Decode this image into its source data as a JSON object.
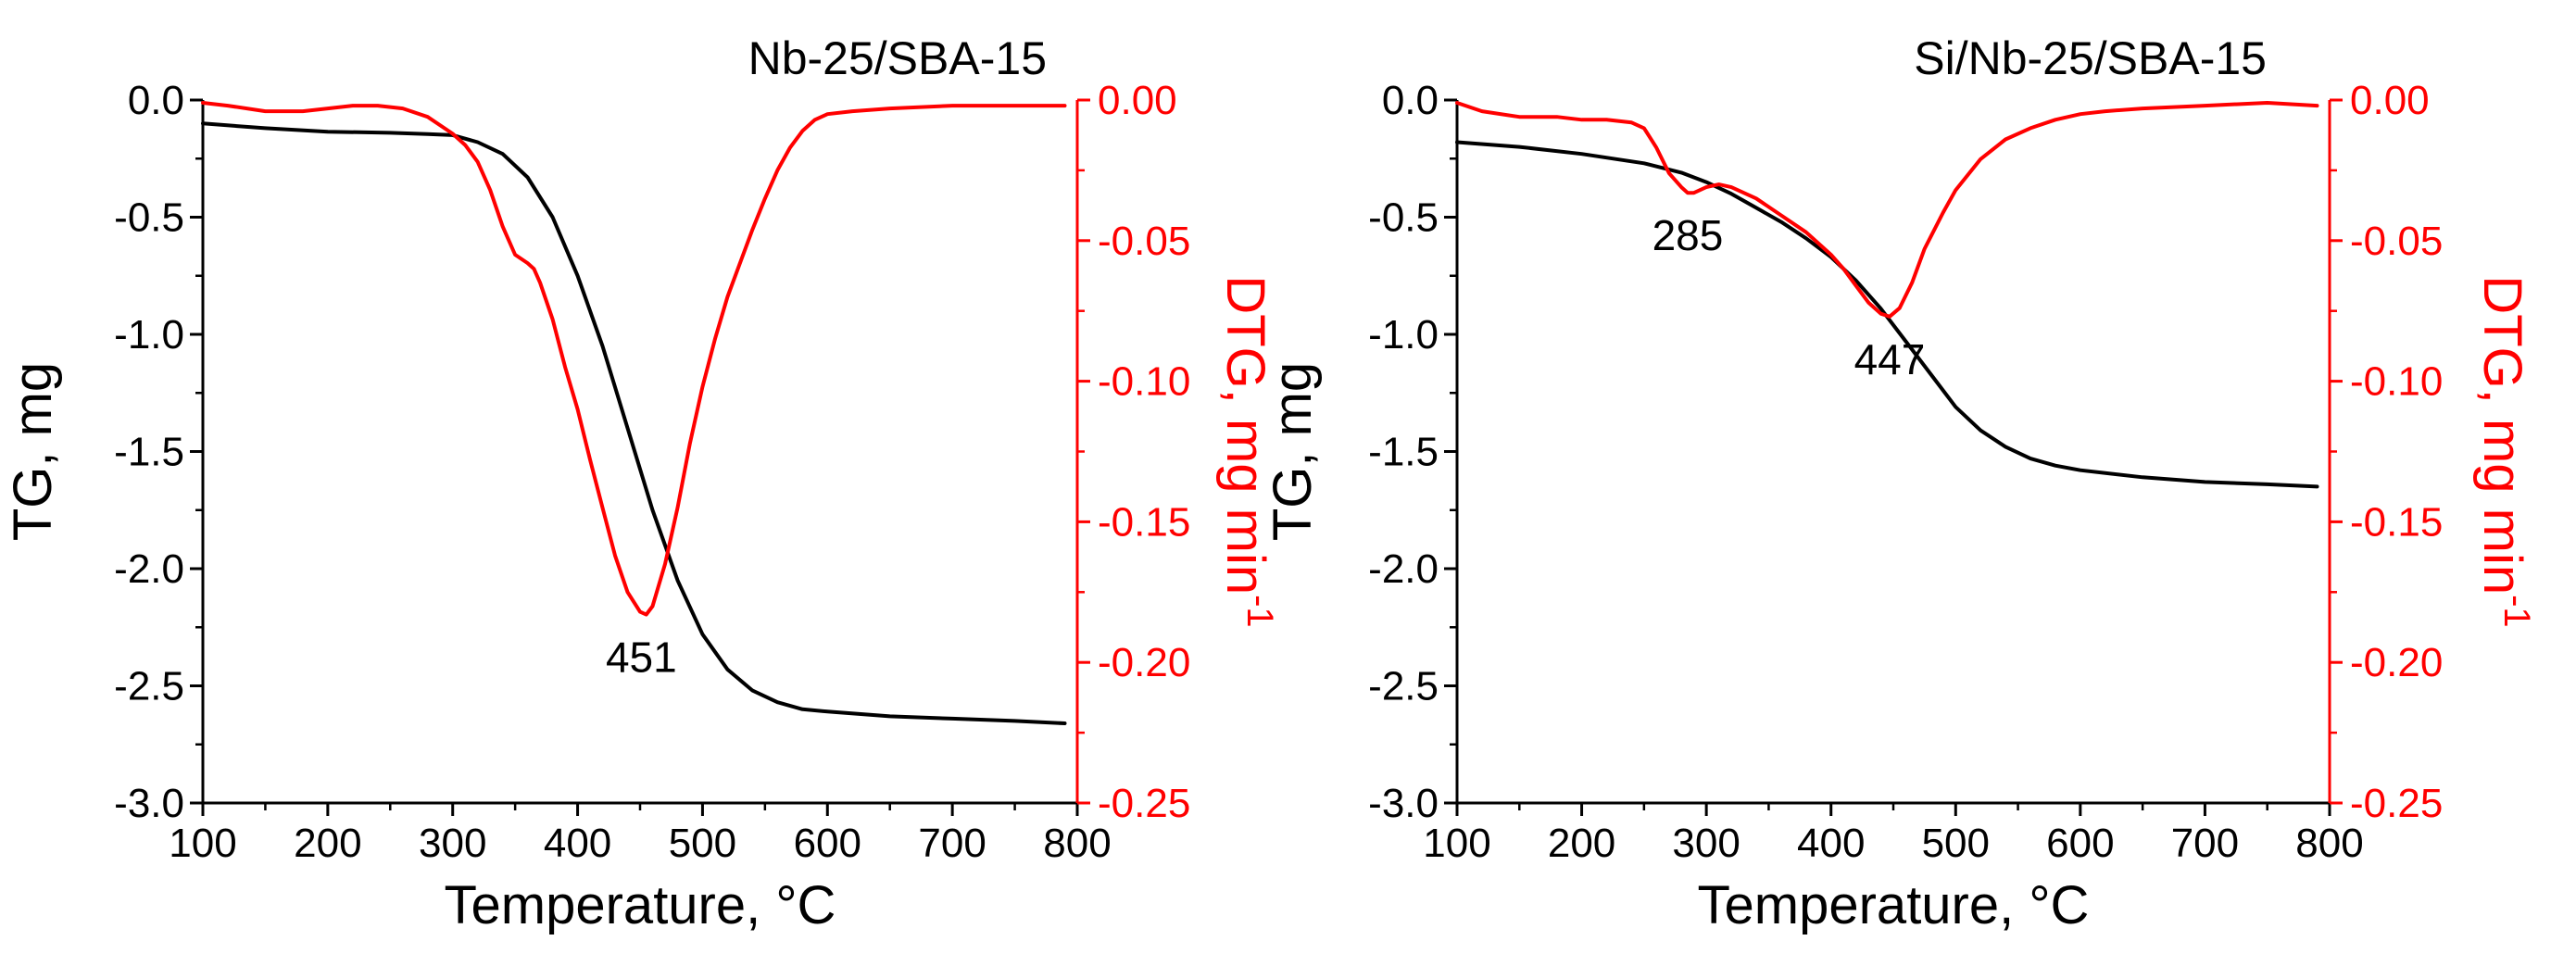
{
  "chart_data": [
    {
      "type": "line",
      "title": "Nb-25/SBA-15",
      "xlabel": "Temperature, °C",
      "ylabel_left": "TG, mg",
      "ylabel_right": "DTG, mg min",
      "ylabel_right_sup": "-1",
      "xlim": [
        100,
        800
      ],
      "ylim_left": [
        -3.0,
        0.0
      ],
      "ylim_right": [
        -0.25,
        0.0
      ],
      "x_ticks": [
        "100",
        "200",
        "300",
        "400",
        "500",
        "600",
        "700",
        "800"
      ],
      "y_ticks_left": [
        "0.0",
        "-0.5",
        "-1.0",
        "-1.5",
        "-2.0",
        "-2.5",
        "-3.0"
      ],
      "y_ticks_right": [
        "0.00",
        "-0.05",
        "-0.10",
        "-0.15",
        "-0.20",
        "-0.25"
      ],
      "colors": {
        "tg": "#000000",
        "dtg": "#ff0000"
      },
      "annotations": [
        {
          "text": "451",
          "x": 451,
          "y_right": -0.183
        }
      ],
      "series": [
        {
          "name": "TG",
          "axis": "left",
          "x": [
            100,
            150,
            200,
            250,
            280,
            300,
            320,
            340,
            360,
            380,
            400,
            420,
            440,
            460,
            480,
            500,
            520,
            540,
            560,
            580,
            600,
            650,
            700,
            750,
            790
          ],
          "y": [
            -0.1,
            -0.12,
            -0.135,
            -0.14,
            -0.145,
            -0.15,
            -0.18,
            -0.23,
            -0.33,
            -0.5,
            -0.75,
            -1.05,
            -1.4,
            -1.75,
            -2.05,
            -2.28,
            -2.43,
            -2.52,
            -2.57,
            -2.6,
            -2.61,
            -2.63,
            -2.64,
            -2.65,
            -2.66
          ]
        },
        {
          "name": "DTG",
          "axis": "right",
          "x": [
            100,
            120,
            150,
            180,
            200,
            220,
            240,
            260,
            280,
            300,
            310,
            320,
            330,
            340,
            350,
            360,
            365,
            370,
            380,
            390,
            400,
            410,
            420,
            430,
            440,
            450,
            455,
            460,
            470,
            480,
            490,
            500,
            510,
            520,
            530,
            540,
            550,
            560,
            570,
            580,
            590,
            600,
            620,
            650,
            700,
            750,
            790
          ],
          "y": [
            -0.001,
            -0.002,
            -0.004,
            -0.004,
            -0.003,
            -0.002,
            -0.002,
            -0.003,
            -0.006,
            -0.012,
            -0.016,
            -0.022,
            -0.032,
            -0.045,
            -0.055,
            -0.058,
            -0.06,
            -0.065,
            -0.078,
            -0.095,
            -0.11,
            -0.128,
            -0.145,
            -0.162,
            -0.175,
            -0.182,
            -0.183,
            -0.18,
            -0.165,
            -0.145,
            -0.122,
            -0.102,
            -0.085,
            -0.07,
            -0.058,
            -0.046,
            -0.035,
            -0.025,
            -0.017,
            -0.011,
            -0.007,
            -0.005,
            -0.004,
            -0.003,
            -0.002,
            -0.002,
            -0.002
          ]
        }
      ]
    },
    {
      "type": "line",
      "title": "Si/Nb-25/SBA-15",
      "xlabel": "Temperature, °C",
      "ylabel_left": "TG, mg",
      "ylabel_right": "DTG, mg min",
      "ylabel_right_sup": "-1",
      "xlim": [
        100,
        800
      ],
      "ylim_left": [
        -3.0,
        0.0
      ],
      "ylim_right": [
        -0.25,
        0.0
      ],
      "x_ticks": [
        "100",
        "200",
        "300",
        "400",
        "500",
        "600",
        "700",
        "800"
      ],
      "y_ticks_left": [
        "0.0",
        "-0.5",
        "-1.0",
        "-1.5",
        "-2.0",
        "-2.5",
        "-3.0"
      ],
      "y_ticks_right": [
        "0.00",
        "-0.05",
        "-0.10",
        "-0.15",
        "-0.20",
        "-0.25"
      ],
      "colors": {
        "tg": "#000000",
        "dtg": "#ff0000"
      },
      "annotations": [
        {
          "text": "285",
          "x": 285,
          "y_right": -0.033
        },
        {
          "text": "447",
          "x": 447,
          "y_right": -0.077
        }
      ],
      "series": [
        {
          "name": "TG",
          "axis": "left",
          "x": [
            100,
            150,
            200,
            250,
            280,
            300,
            320,
            340,
            360,
            380,
            400,
            420,
            440,
            460,
            480,
            500,
            520,
            540,
            560,
            580,
            600,
            650,
            700,
            750,
            790
          ],
          "y": [
            -0.18,
            -0.2,
            -0.23,
            -0.27,
            -0.31,
            -0.35,
            -0.4,
            -0.46,
            -0.52,
            -0.59,
            -0.67,
            -0.77,
            -0.89,
            -1.03,
            -1.17,
            -1.31,
            -1.41,
            -1.48,
            -1.53,
            -1.56,
            -1.58,
            -1.61,
            -1.63,
            -1.64,
            -1.65
          ]
        },
        {
          "name": "DTG",
          "axis": "right",
          "x": [
            100,
            120,
            150,
            180,
            200,
            220,
            240,
            250,
            260,
            270,
            280,
            285,
            290,
            300,
            310,
            320,
            340,
            360,
            380,
            400,
            410,
            420,
            430,
            440,
            447,
            455,
            465,
            475,
            490,
            500,
            520,
            540,
            560,
            580,
            600,
            620,
            650,
            700,
            750,
            790
          ],
          "y": [
            -0.001,
            -0.004,
            -0.006,
            -0.006,
            -0.007,
            -0.007,
            -0.008,
            -0.01,
            -0.017,
            -0.026,
            -0.031,
            -0.033,
            -0.033,
            -0.031,
            -0.03,
            -0.031,
            -0.035,
            -0.041,
            -0.047,
            -0.055,
            -0.06,
            -0.066,
            -0.072,
            -0.076,
            -0.077,
            -0.074,
            -0.065,
            -0.053,
            -0.04,
            -0.032,
            -0.021,
            -0.014,
            -0.01,
            -0.007,
            -0.005,
            -0.004,
            -0.003,
            -0.002,
            -0.001,
            -0.002
          ]
        }
      ]
    }
  ]
}
